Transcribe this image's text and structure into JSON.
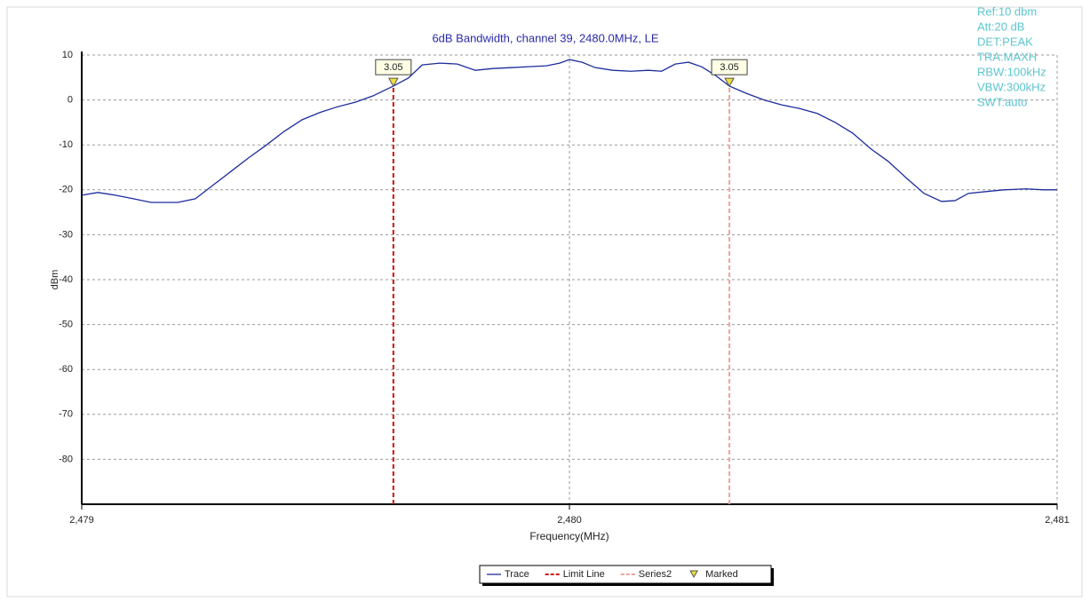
{
  "chart_data": {
    "type": "line",
    "title": "6dB Bandwidth,  channel 39, 2480.0MHz, LE",
    "xlabel": "Frequency(MHz)",
    "ylabel": "dBm",
    "xlim": [
      2479,
      2481
    ],
    "xticks": [
      {
        "value": 2479,
        "label": "2,479"
      },
      {
        "value": 2480,
        "label": "2,480"
      },
      {
        "value": 2481,
        "label": "2,481"
      }
    ],
    "ylim": [
      -90,
      10
    ],
    "yticks": [
      10,
      0,
      -10,
      -20,
      -30,
      -40,
      -50,
      -60,
      -70,
      -80
    ],
    "grid": true,
    "info": [
      "Ref:10 dbm",
      "Att:20 dB",
      "DET:PEAK",
      "TRA:MAXH",
      "RBW:100kHz",
      "VBW:300kHz",
      "SWT:auto"
    ],
    "series": [
      {
        "name": "Trace",
        "color": "#1c2c9c",
        "style": "solid",
        "x": [
          2479.0,
          2479.033,
          2479.069,
          2479.106,
          2479.142,
          2479.197,
          2479.233,
          2479.27,
          2479.306,
          2479.342,
          2479.379,
          2479.415,
          2479.452,
          2479.488,
          2479.525,
          2479.561,
          2479.597,
          2479.639,
          2479.67,
          2479.698,
          2479.734,
          2479.77,
          2479.807,
          2479.843,
          2479.88,
          2479.916,
          2479.953,
          2479.98,
          2480.0,
          2480.026,
          2480.053,
          2480.089,
          2480.126,
          2480.162,
          2480.189,
          2480.217,
          2480.244,
          2480.271,
          2480.299,
          2480.328,
          2480.362,
          2480.399,
          2480.435,
          2480.472,
          2480.508,
          2480.545,
          2480.581,
          2480.617,
          2480.654,
          2480.69,
          2480.727,
          2480.763,
          2480.791,
          2480.818,
          2480.854,
          2480.891,
          2480.936,
          2480.973,
          2481.0
        ],
        "values": [
          -21.2,
          -20.6,
          -21.2,
          -22.0,
          -22.8,
          -22.8,
          -22.0,
          -18.9,
          -15.9,
          -12.9,
          -10.0,
          -7.0,
          -4.4,
          -2.8,
          -1.5,
          -0.5,
          0.9,
          3.1,
          4.9,
          7.8,
          8.2,
          8.0,
          6.6,
          7.0,
          7.2,
          7.4,
          7.6,
          8.2,
          9.0,
          8.4,
          7.2,
          6.6,
          6.4,
          6.6,
          6.4,
          8.0,
          8.4,
          7.4,
          5.5,
          3.1,
          1.5,
          0,
          -1.1,
          -1.9,
          -3.0,
          -5.0,
          -7.4,
          -10.8,
          -13.7,
          -17.3,
          -20.8,
          -22.6,
          -22.4,
          -20.8,
          -20.4,
          -20.0,
          -19.8,
          -20.0,
          -20.0
        ]
      },
      {
        "name": "Limit Line",
        "color": "#cc1111",
        "style": "dashed",
        "x": [
          2479.639,
          2479.639
        ],
        "values": [
          -90,
          3.05
        ]
      },
      {
        "name": "Series2",
        "color": "#f3a0a0",
        "style": "dashed",
        "x": [
          2480.328,
          2480.328
        ],
        "values": [
          -90,
          3.05
        ]
      },
      {
        "name": "Marked",
        "color": "#f0e040",
        "style": "marker",
        "x": [
          2479.639,
          2480.328
        ],
        "values": [
          3.05,
          3.05
        ]
      }
    ]
  }
}
